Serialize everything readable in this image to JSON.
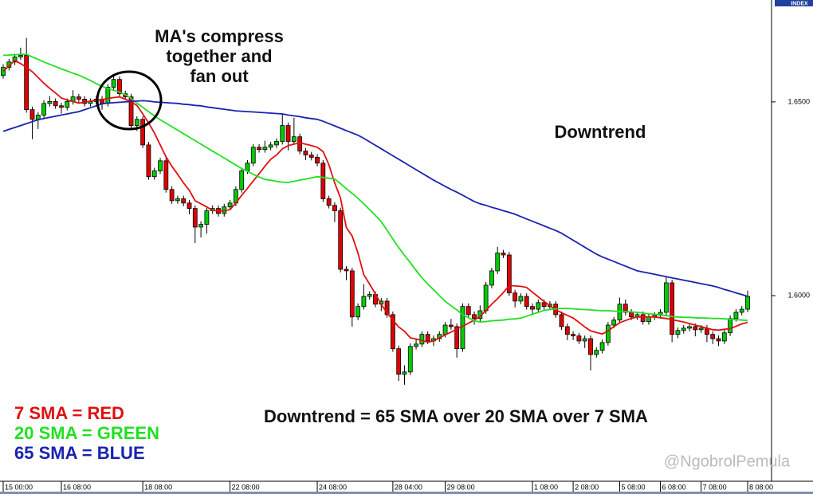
{
  "chart_data": {
    "type": "candlestick",
    "index_label": "INDEX",
    "watermark": "@NgobrolPemula",
    "up_color": "#00cc00",
    "down_color": "#e00000",
    "ylim": [
      1.5523,
      1.6763
    ],
    "yticks": [
      {
        "value": 1.65,
        "label": "1.6500"
      },
      {
        "value": 1.6,
        "label": "1.6000"
      }
    ],
    "annotations": [
      {
        "lines": [
          "MA's compress",
          "together and",
          "fan out"
        ]
      },
      {
        "lines": [
          "Downtrend"
        ]
      },
      {
        "lines": [
          "Downtrend = 65 SMA over 20 SMA over 7 SMA"
        ]
      }
    ],
    "categories": [
      "15 00:00",
      null,
      null,
      null,
      null,
      null,
      null,
      null,
      null,
      null,
      "16 08:00",
      null,
      null,
      null,
      null,
      null,
      null,
      null,
      null,
      null,
      null,
      null,
      null,
      null,
      "18 08:00",
      null,
      null,
      null,
      null,
      null,
      null,
      null,
      null,
      null,
      null,
      null,
      null,
      null,
      null,
      "22 08:00",
      null,
      null,
      null,
      null,
      null,
      null,
      null,
      null,
      null,
      null,
      null,
      null,
      null,
      null,
      "24 08:00",
      null,
      null,
      null,
      null,
      null,
      null,
      null,
      null,
      null,
      null,
      null,
      null,
      "28 04:00",
      null,
      null,
      null,
      null,
      null,
      null,
      null,
      null,
      "29 08:00",
      null,
      null,
      null,
      null,
      null,
      null,
      null,
      null,
      null,
      null,
      null,
      null,
      null,
      null,
      "1 08:00",
      null,
      null,
      null,
      null,
      null,
      null,
      "2 08:00",
      null,
      null,
      null,
      null,
      null,
      null,
      null,
      "5 08:00",
      null,
      null,
      null,
      null,
      null,
      null,
      "6 08:00",
      null,
      null,
      null,
      null,
      null,
      null,
      "7 08:00",
      null,
      null,
      null,
      null,
      null,
      null,
      null,
      "8 08:00"
    ],
    "ohlc": [
      [
        1.6568,
        1.6597,
        1.656,
        1.6589
      ],
      [
        1.6589,
        1.6611,
        1.6581,
        1.6603
      ],
      [
        1.6603,
        1.6624,
        1.6595,
        1.6616
      ],
      [
        1.6616,
        1.664,
        1.6608,
        1.662
      ],
      [
        1.662,
        1.6665,
        1.6472,
        1.648
      ],
      [
        1.648,
        1.6488,
        1.6404,
        1.6455
      ],
      [
        1.6455,
        1.6474,
        1.643,
        1.6466
      ],
      [
        1.6466,
        1.6504,
        1.6458,
        1.6496
      ],
      [
        1.6496,
        1.6515,
        1.6488,
        1.6501
      ],
      [
        1.6501,
        1.6509,
        1.6482,
        1.649
      ],
      [
        1.649,
        1.6498,
        1.647,
        1.6486
      ],
      [
        1.6486,
        1.6509,
        1.6478,
        1.6501
      ],
      [
        1.6501,
        1.653,
        1.6493,
        1.6513
      ],
      [
        1.6513,
        1.6521,
        1.6499,
        1.6507
      ],
      [
        1.6507,
        1.6515,
        1.6488,
        1.6496
      ],
      [
        1.6496,
        1.6509,
        1.6488,
        1.6501
      ],
      [
        1.6501,
        1.6515,
        1.6493,
        1.6507
      ],
      [
        1.6507,
        1.6515,
        1.648,
        1.6496
      ],
      [
        1.6496,
        1.6546,
        1.6488,
        1.6538
      ],
      [
        1.6538,
        1.6566,
        1.653,
        1.6558
      ],
      [
        1.6558,
        1.6566,
        1.6513,
        1.6521
      ],
      [
        1.6521,
        1.6529,
        1.6505,
        1.6513
      ],
      [
        1.6513,
        1.6521,
        1.6431,
        1.6439
      ],
      [
        1.6439,
        1.6463,
        1.6425,
        1.6455
      ],
      [
        1.6455,
        1.6463,
        1.6381,
        1.6389
      ],
      [
        1.6389,
        1.6397,
        1.6299,
        1.6307
      ],
      [
        1.6307,
        1.633,
        1.6299,
        1.6322
      ],
      [
        1.6322,
        1.6356,
        1.6314,
        1.6348
      ],
      [
        1.6348,
        1.6356,
        1.6266,
        1.6274
      ],
      [
        1.6274,
        1.6282,
        1.6237,
        1.6245
      ],
      [
        1.6245,
        1.6258,
        1.6237,
        1.625
      ],
      [
        1.625,
        1.6258,
        1.6231,
        1.6239
      ],
      [
        1.6239,
        1.6247,
        1.621,
        1.6225
      ],
      [
        1.6225,
        1.6233,
        1.6136,
        1.6177
      ],
      [
        1.6177,
        1.6192,
        1.615,
        1.6184
      ],
      [
        1.6184,
        1.6227,
        1.616,
        1.6219
      ],
      [
        1.6219,
        1.6233,
        1.6211,
        1.6225
      ],
      [
        1.6225,
        1.6233,
        1.6204,
        1.6212
      ],
      [
        1.6212,
        1.6237,
        1.6204,
        1.6229
      ],
      [
        1.6229,
        1.6247,
        1.6221,
        1.6239
      ],
      [
        1.6239,
        1.6282,
        1.6231,
        1.6274
      ],
      [
        1.6274,
        1.633,
        1.6266,
        1.6322
      ],
      [
        1.6322,
        1.635,
        1.6314,
        1.6342
      ],
      [
        1.6342,
        1.6391,
        1.6334,
        1.6383
      ],
      [
        1.6383,
        1.6391,
        1.6369,
        1.6377
      ],
      [
        1.6377,
        1.64,
        1.6369,
        1.6383
      ],
      [
        1.6383,
        1.6397,
        1.6375,
        1.6389
      ],
      [
        1.6389,
        1.6406,
        1.6381,
        1.6398
      ],
      [
        1.6398,
        1.647,
        1.639,
        1.6439
      ],
      [
        1.6439,
        1.6447,
        1.6375,
        1.6398
      ],
      [
        1.6398,
        1.6459,
        1.639,
        1.641
      ],
      [
        1.641,
        1.6418,
        1.6365,
        1.6373
      ],
      [
        1.6373,
        1.6381,
        1.635,
        1.6363
      ],
      [
        1.6363,
        1.6371,
        1.6349,
        1.6357
      ],
      [
        1.6357,
        1.6365,
        1.6334,
        1.6342
      ],
      [
        1.6342,
        1.635,
        1.6242,
        1.625
      ],
      [
        1.625,
        1.6258,
        1.6225,
        1.6233
      ],
      [
        1.6233,
        1.6241,
        1.619,
        1.6219
      ],
      [
        1.6219,
        1.6227,
        1.606,
        1.6068
      ],
      [
        1.6068,
        1.6076,
        1.604,
        1.6064
      ],
      [
        1.6064,
        1.6072,
        1.592,
        1.5945
      ],
      [
        1.5945,
        1.598,
        1.5937,
        1.5972
      ],
      [
        1.5972,
        1.603,
        1.5964,
        1.5998
      ],
      [
        1.5998,
        1.6011,
        1.599,
        1.6003
      ],
      [
        1.6003,
        1.6011,
        1.597,
        1.5978
      ],
      [
        1.5978,
        1.5994,
        1.596,
        1.5986
      ],
      [
        1.5986,
        1.5994,
        1.5943,
        1.5951
      ],
      [
        1.5951,
        1.5959,
        1.5855,
        1.5863
      ],
      [
        1.5863,
        1.5871,
        1.578,
        1.5797
      ],
      [
        1.5797,
        1.582,
        1.577,
        1.5803
      ],
      [
        1.5803,
        1.5877,
        1.5795,
        1.5869
      ],
      [
        1.5869,
        1.589,
        1.5861,
        1.5875
      ],
      [
        1.5875,
        1.5908,
        1.5867,
        1.59
      ],
      [
        1.59,
        1.5908,
        1.5875,
        1.5883
      ],
      [
        1.5883,
        1.5897,
        1.587,
        1.5889
      ],
      [
        1.5889,
        1.5908,
        1.5881,
        1.59
      ],
      [
        1.59,
        1.5932,
        1.5892,
        1.5924
      ],
      [
        1.5924,
        1.594,
        1.5912,
        1.592
      ],
      [
        1.592,
        1.5928,
        1.584,
        1.5863
      ],
      [
        1.5863,
        1.598,
        1.5855,
        1.5972
      ],
      [
        1.5972,
        1.598,
        1.5943,
        1.5951
      ],
      [
        1.5951,
        1.5959,
        1.5925,
        1.5941
      ],
      [
        1.5941,
        1.5975,
        1.5933,
        1.5961
      ],
      [
        1.5961,
        1.6035,
        1.5953,
        1.6027
      ],
      [
        1.6027,
        1.6072,
        1.6019,
        1.6064
      ],
      [
        1.6064,
        1.6126,
        1.6056,
        1.611
      ],
      [
        1.611,
        1.6118,
        1.6097,
        1.6105
      ],
      [
        1.6105,
        1.6113,
        1.5999,
        1.6007
      ],
      [
        1.6007,
        1.6015,
        1.597,
        1.5986
      ],
      [
        1.5986,
        1.6006,
        1.5978,
        1.5998
      ],
      [
        1.5998,
        1.6006,
        1.5964,
        1.5972
      ],
      [
        1.5972,
        1.598,
        1.595,
        1.5965
      ],
      [
        1.5965,
        1.599,
        1.5957,
        1.5982
      ],
      [
        1.5982,
        1.599,
        1.5964,
        1.5972
      ],
      [
        1.5972,
        1.5986,
        1.5964,
        1.5978
      ],
      [
        1.5978,
        1.5986,
        1.5943,
        1.5951
      ],
      [
        1.5951,
        1.5959,
        1.5912,
        1.592
      ],
      [
        1.592,
        1.5928,
        1.5885,
        1.59
      ],
      [
        1.59,
        1.5908,
        1.5885,
        1.5896
      ],
      [
        1.5896,
        1.5904,
        1.5875,
        1.5883
      ],
      [
        1.5883,
        1.5897,
        1.5865,
        1.5889
      ],
      [
        1.5889,
        1.5897,
        1.5807,
        1.5848
      ],
      [
        1.5848,
        1.5867,
        1.584,
        1.5859
      ],
      [
        1.5859,
        1.5887,
        1.5851,
        1.5879
      ],
      [
        1.5879,
        1.5932,
        1.5871,
        1.5924
      ],
      [
        1.5924,
        1.5945,
        1.5916,
        1.5937
      ],
      [
        1.5937,
        1.5995,
        1.5929,
        1.5978
      ],
      [
        1.5978,
        1.599,
        1.5949,
        1.5957
      ],
      [
        1.5957,
        1.5965,
        1.5937,
        1.5945
      ],
      [
        1.5945,
        1.5959,
        1.5937,
        1.5951
      ],
      [
        1.5951,
        1.5959,
        1.5925,
        1.5933
      ],
      [
        1.5933,
        1.5953,
        1.5925,
        1.5945
      ],
      [
        1.5945,
        1.5957,
        1.5937,
        1.5949
      ],
      [
        1.5949,
        1.5965,
        1.5941,
        1.5957
      ],
      [
        1.5957,
        1.6048,
        1.5949,
        1.6033
      ],
      [
        1.6033,
        1.6041,
        1.588,
        1.59
      ],
      [
        1.59,
        1.5918,
        1.589,
        1.591
      ],
      [
        1.591,
        1.5924,
        1.5902,
        1.5916
      ],
      [
        1.5916,
        1.5928,
        1.5908,
        1.592
      ],
      [
        1.592,
        1.5928,
        1.5895,
        1.5912
      ],
      [
        1.5912,
        1.5924,
        1.5904,
        1.5916
      ],
      [
        1.5916,
        1.5924,
        1.588,
        1.59
      ],
      [
        1.59,
        1.5908,
        1.5875,
        1.5889
      ],
      [
        1.5889,
        1.5897,
        1.587,
        1.5883
      ],
      [
        1.5883,
        1.5912,
        1.5875,
        1.5904
      ],
      [
        1.5904,
        1.5949,
        1.5896,
        1.5941
      ],
      [
        1.5941,
        1.5965,
        1.5933,
        1.5957
      ],
      [
        1.5957,
        1.5973,
        1.5949,
        1.5965
      ],
      [
        1.5965,
        1.6013,
        1.5957,
        1.5998
      ]
    ],
    "series": [
      {
        "name": "7 SMA = RED",
        "color": "#e01010",
        "values": [
          1.6579,
          1.6593,
          1.6607,
          1.6599,
          1.6589,
          1.6578,
          1.6563,
          1.6548,
          1.6535,
          1.6523,
          1.651,
          1.6505,
          1.6501,
          1.6497,
          1.6499,
          1.6502,
          1.6504,
          1.6506,
          1.6509,
          1.6511,
          1.6513,
          1.6507,
          1.65,
          1.6491,
          1.6469,
          1.6446,
          1.642,
          1.6389,
          1.6358,
          1.6334,
          1.6313,
          1.6291,
          1.6272,
          1.6245,
          1.6237,
          1.6229,
          1.622,
          1.6219,
          1.6219,
          1.6222,
          1.6239,
          1.6259,
          1.6277,
          1.6296,
          1.6315,
          1.6334,
          1.6352,
          1.6363,
          1.6379,
          1.6387,
          1.6391,
          1.6394,
          1.6391,
          1.6387,
          1.6383,
          1.6372,
          1.6338,
          1.6291,
          1.6252,
          1.6176,
          1.6154,
          1.611,
          1.6054,
          1.603,
          1.6004,
          1.5977,
          1.5956,
          1.5937,
          1.5919,
          1.5908,
          1.5891,
          1.5888,
          1.5884,
          1.588,
          1.5883,
          1.5891,
          1.5899,
          1.5906,
          1.5914,
          1.5921,
          1.5929,
          1.5937,
          1.5946,
          1.5962,
          1.5978,
          1.5992,
          1.6008,
          1.6026,
          1.6025,
          1.6024,
          1.6021,
          1.6009,
          1.5997,
          1.5985,
          1.5974,
          1.5963,
          1.5956,
          1.5949,
          1.5942,
          1.5931,
          1.5919,
          1.5909,
          1.5905,
          1.5901,
          1.5909,
          1.592,
          1.593,
          1.5936,
          1.5941,
          1.5945,
          1.5945,
          1.5945,
          1.5945,
          1.5943,
          1.5941,
          1.5938,
          1.5935,
          1.5932,
          1.5928,
          1.5924,
          1.592,
          1.5916,
          1.5912,
          1.5911,
          1.5913,
          1.5915,
          1.5921,
          1.5927,
          1.5931
        ]
      },
      {
        "name": "20 SMA = GREEN",
        "color": "#22e022",
        "values": [
          1.662,
          1.6621,
          1.6622,
          1.6623,
          1.6623,
          1.6616,
          1.661,
          1.6603,
          1.6597,
          1.6591,
          1.6585,
          1.658,
          1.6574,
          1.6569,
          1.6562,
          1.6555,
          1.6547,
          1.654,
          1.6535,
          1.653,
          1.6525,
          1.6519,
          1.6509,
          1.6497,
          1.6486,
          1.6475,
          1.6464,
          1.6454,
          1.6445,
          1.6436,
          1.6427,
          1.6418,
          1.6409,
          1.64,
          1.6391,
          1.6382,
          1.6373,
          1.6364,
          1.6355,
          1.6346,
          1.6337,
          1.6328,
          1.6321,
          1.6313,
          1.6306,
          1.63,
          1.6298,
          1.6295,
          1.6293,
          1.6292,
          1.6295,
          1.6298,
          1.6301,
          1.6304,
          1.6307,
          1.6305,
          1.6303,
          1.6301,
          1.6289,
          1.6276,
          1.6264,
          1.6251,
          1.6237,
          1.6222,
          1.6207,
          1.6191,
          1.6169,
          1.6146,
          1.6124,
          1.6104,
          1.6085,
          1.6065,
          1.6046,
          1.603,
          1.6015,
          1.6,
          1.5985,
          1.5974,
          1.5963,
          1.5951,
          1.5943,
          1.5935,
          1.5932,
          1.5933,
          1.5935,
          1.5936,
          1.5937,
          1.5939,
          1.594,
          1.5942,
          1.5947,
          1.5952,
          1.5957,
          1.5962,
          1.5964,
          1.5966,
          1.5967,
          1.5967,
          1.5966,
          1.5965,
          1.5964,
          1.5963,
          1.5962,
          1.5961,
          1.5961,
          1.596,
          1.5959,
          1.5959,
          1.5958,
          1.5957,
          1.5955,
          1.5953,
          1.5952,
          1.595,
          1.5948,
          1.5946,
          1.5945,
          1.5944,
          1.5944,
          1.5943,
          1.5942,
          1.5942,
          1.5941,
          1.5941,
          1.594,
          1.5939,
          1.5938,
          1.5937,
          1.5936
        ]
      },
      {
        "name": "65 SMA = BLUE",
        "color": "#1a22b0",
        "values": [
          1.6424,
          1.6429,
          1.6434,
          1.6439,
          1.6444,
          1.6449,
          1.6454,
          1.6457,
          1.646,
          1.6463,
          1.6466,
          1.6469,
          1.6472,
          1.6475,
          1.648,
          1.6485,
          1.649,
          1.6495,
          1.6497,
          1.6498,
          1.6499,
          1.65,
          1.6501,
          1.6502,
          1.6503,
          1.6502,
          1.65,
          1.6499,
          1.6498,
          1.6497,
          1.6496,
          1.6494,
          1.6493,
          1.6491,
          1.649,
          1.6487,
          1.6485,
          1.6483,
          1.6481,
          1.6479,
          1.6477,
          1.6476,
          1.6475,
          1.6474,
          1.6473,
          1.6472,
          1.6471,
          1.647,
          1.6469,
          1.6466,
          1.6464,
          1.6462,
          1.6459,
          1.6457,
          1.6455,
          1.645,
          1.6444,
          1.6438,
          1.6432,
          1.6426,
          1.642,
          1.6414,
          1.6406,
          1.6397,
          1.6388,
          1.6379,
          1.637,
          1.6361,
          1.6352,
          1.6343,
          1.6334,
          1.6325,
          1.6316,
          1.6307,
          1.6298,
          1.629,
          1.6282,
          1.6274,
          1.6267,
          1.6259,
          1.6251,
          1.6243,
          1.6237,
          1.6233,
          1.6228,
          1.6224,
          1.6219,
          1.6215,
          1.621,
          1.6204,
          1.6198,
          1.6192,
          1.6186,
          1.618,
          1.6174,
          1.6168,
          1.6161,
          1.6152,
          1.6143,
          1.6134,
          1.6125,
          1.6116,
          1.6107,
          1.61,
          1.6094,
          1.6088,
          1.6082,
          1.6076,
          1.607,
          1.6064,
          1.6061,
          1.6058,
          1.6055,
          1.6052,
          1.6049,
          1.6046,
          1.6043,
          1.604,
          1.6037,
          1.6034,
          1.6031,
          1.6028,
          1.6025,
          1.6021,
          1.6016,
          1.6012,
          1.6007,
          1.6003,
          1.5998
        ]
      }
    ]
  }
}
